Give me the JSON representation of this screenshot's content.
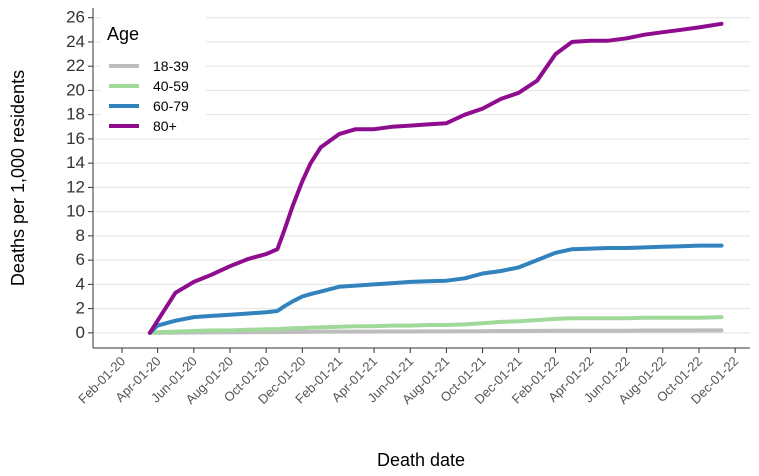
{
  "chart_data": {
    "type": "line",
    "x_label": "Death date",
    "y_label": "Deaths per 1,000 residents",
    "legend_title": "Age",
    "legend": "top-left",
    "grid": true,
    "x": [
      "2020-03-19",
      "2020-04-01",
      "2020-05-01",
      "2020-06-01",
      "2020-07-01",
      "2020-08-01",
      "2020-09-01",
      "2020-10-01",
      "2020-10-20",
      "2020-11-01",
      "2020-11-15",
      "2020-12-01",
      "2020-12-15",
      "2021-01-01",
      "2021-02-01",
      "2021-03-01",
      "2021-04-01",
      "2021-05-01",
      "2021-06-01",
      "2021-07-01",
      "2021-08-01",
      "2021-09-01",
      "2021-10-01",
      "2021-11-01",
      "2021-12-01",
      "2022-01-01",
      "2022-02-01",
      "2022-03-01",
      "2022-04-01",
      "2022-05-01",
      "2022-06-01",
      "2022-07-01",
      "2022-08-01",
      "2022-09-01",
      "2022-10-01",
      "2022-11-08"
    ],
    "series": [
      {
        "name": "18-39",
        "color": "#bdbdbd",
        "values": [
          0,
          0,
          0.02,
          0.03,
          0.04,
          0.05,
          0.05,
          0.06,
          0.06,
          0.07,
          0.07,
          0.08,
          0.08,
          0.09,
          0.1,
          0.1,
          0.1,
          0.11,
          0.11,
          0.12,
          0.12,
          0.13,
          0.14,
          0.15,
          0.15,
          0.16,
          0.17,
          0.18,
          0.18,
          0.18,
          0.18,
          0.19,
          0.19,
          0.19,
          0.2,
          0.2
        ]
      },
      {
        "name": "40-59",
        "color": "#a1d99b",
        "values": [
          0,
          0.05,
          0.1,
          0.15,
          0.2,
          0.2,
          0.25,
          0.3,
          0.3,
          0.35,
          0.38,
          0.4,
          0.43,
          0.45,
          0.5,
          0.55,
          0.55,
          0.6,
          0.6,
          0.65,
          0.65,
          0.7,
          0.8,
          0.9,
          0.95,
          1.05,
          1.15,
          1.2,
          1.2,
          1.2,
          1.2,
          1.25,
          1.25,
          1.25,
          1.25,
          1.3
        ]
      },
      {
        "name": "60-79",
        "color": "#3182bd",
        "values": [
          0,
          0.6,
          1.0,
          1.3,
          1.4,
          1.5,
          1.6,
          1.7,
          1.8,
          2.2,
          2.6,
          3.0,
          3.2,
          3.4,
          3.8,
          3.9,
          4.0,
          4.1,
          4.2,
          4.25,
          4.3,
          4.5,
          4.9,
          5.1,
          5.4,
          6.0,
          6.6,
          6.9,
          6.95,
          7.0,
          7.0,
          7.05,
          7.1,
          7.15,
          7.2,
          7.2
        ]
      },
      {
        "name": "80+",
        "color": "#8e0d8e",
        "values": [
          0,
          1,
          3.3,
          4.2,
          4.8,
          5.5,
          6.1,
          6.5,
          6.9,
          8.5,
          10.5,
          12.5,
          14,
          15.3,
          16.4,
          16.8,
          16.8,
          17.0,
          17.1,
          17.2,
          17.3,
          18.0,
          18.5,
          19.3,
          19.8,
          20.8,
          23.0,
          24.0,
          24.1,
          24.1,
          24.3,
          24.6,
          24.8,
          25.0,
          25.2,
          25.5
        ]
      }
    ],
    "xlim": [
      "2019-12-14",
      "2022-12-26"
    ],
    "xticks": [
      {
        "value": "2020-02-01",
        "label": "Feb-01-20"
      },
      {
        "value": "2020-04-01",
        "label": "Apr-01-20"
      },
      {
        "value": "2020-06-01",
        "label": "Jun-01-20"
      },
      {
        "value": "2020-08-01",
        "label": "Aug-01-20"
      },
      {
        "value": "2020-10-01",
        "label": "Oct-01-20"
      },
      {
        "value": "2020-12-01",
        "label": "Dec-01-20"
      },
      {
        "value": "2021-02-01",
        "label": "Feb-01-21"
      },
      {
        "value": "2021-04-01",
        "label": "Apr-01-21"
      },
      {
        "value": "2021-06-01",
        "label": "Jun-01-21"
      },
      {
        "value": "2021-08-01",
        "label": "Aug-01-21"
      },
      {
        "value": "2021-10-01",
        "label": "Oct-01-21"
      },
      {
        "value": "2021-12-01",
        "label": "Dec-01-21"
      },
      {
        "value": "2022-02-01",
        "label": "Feb-01-22"
      },
      {
        "value": "2022-04-01",
        "label": "Apr-01-22"
      },
      {
        "value": "2022-06-01",
        "label": "Jun-01-22"
      },
      {
        "value": "2022-08-01",
        "label": "Aug-01-22"
      },
      {
        "value": "2022-10-01",
        "label": "Oct-01-22"
      },
      {
        "value": "2022-12-01",
        "label": "Dec-01-22"
      }
    ],
    "ylim": [
      -1.25,
      26.8
    ],
    "yticks": [
      0,
      2,
      4,
      6,
      8,
      10,
      12,
      14,
      16,
      18,
      20,
      22,
      24,
      26
    ]
  }
}
